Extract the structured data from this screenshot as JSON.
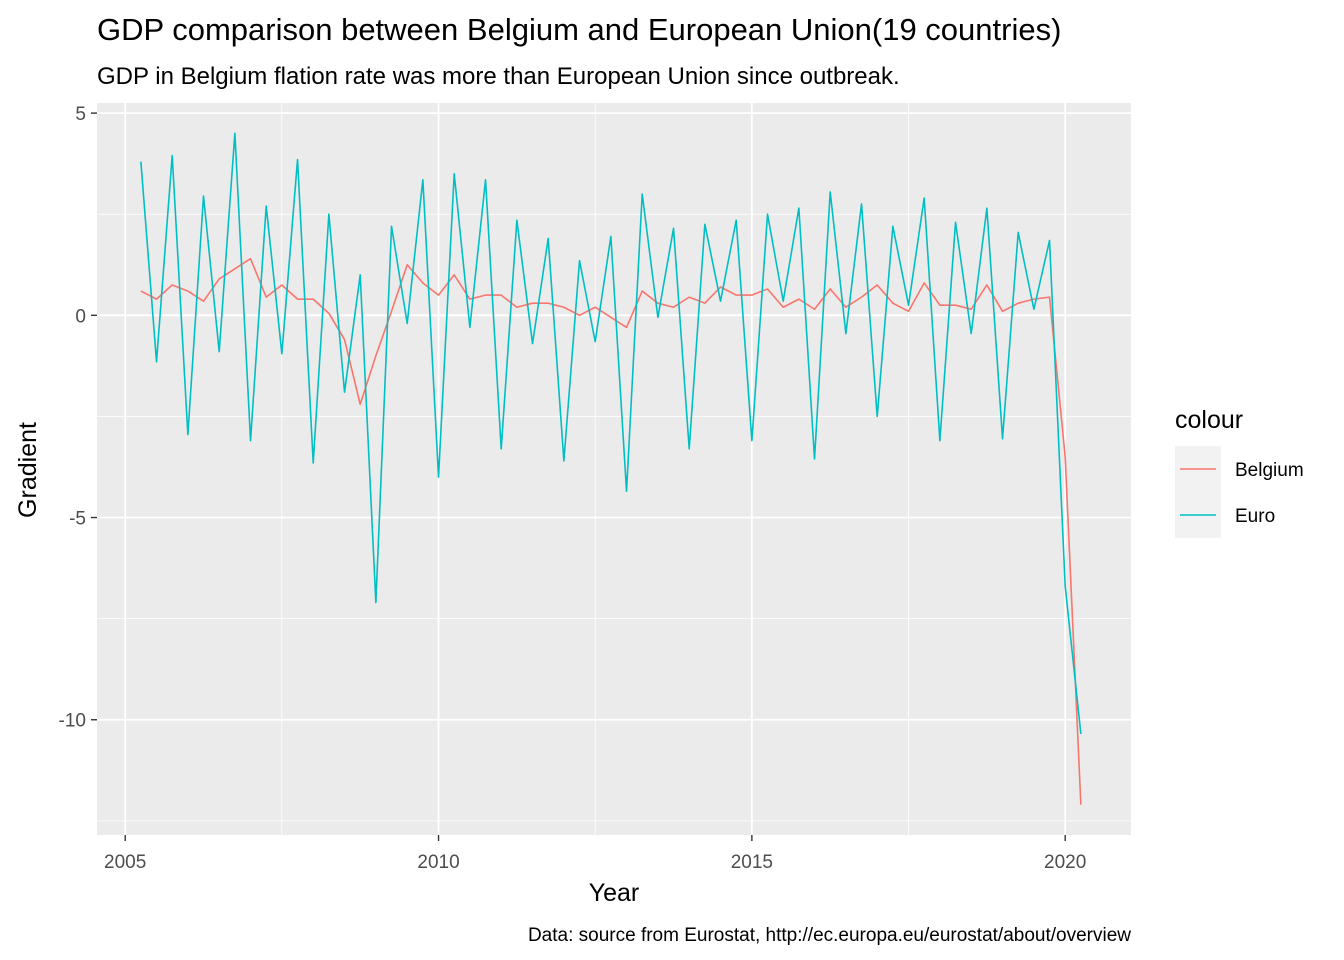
{
  "chart_data": {
    "type": "line",
    "title": "GDP comparison between Belgium and European Union(19 countries)",
    "subtitle": "GDP in Belgium flation rate was more than European Union since outbreak.",
    "xlabel": "Year",
    "ylabel": "Gradient",
    "caption": "Data: source from Eurostat,  http://ec.europa.eu/eurostat/about/overview",
    "xlim": [
      2004.55,
      2021.05
    ],
    "ylim": [
      -12.85,
      5.25
    ],
    "x_ticks": [
      2005,
      2010,
      2015,
      2020
    ],
    "x_tick_labels": [
      "2005",
      "2010",
      "2015",
      "2020"
    ],
    "y_ticks": [
      5,
      0,
      -5,
      -10
    ],
    "y_tick_labels": [
      "5",
      "0",
      "-5",
      "-10"
    ],
    "grid": true,
    "legend": {
      "title": "colour",
      "position": "right",
      "entries": [
        "Belgium",
        "Euro"
      ]
    },
    "colors": {
      "panel_bg": "#ebebeb",
      "grid": "#ffffff",
      "Belgium": "#f8766d",
      "Euro": "#00bfc4",
      "legend_key_bg": "#f2f2f2"
    },
    "x": [
      2005.25,
      2005.5,
      2005.75,
      2006.0,
      2006.25,
      2006.5,
      2006.75,
      2007.0,
      2007.25,
      2007.5,
      2007.75,
      2008.0,
      2008.25,
      2008.5,
      2008.75,
      2009.0,
      2009.25,
      2009.5,
      2009.75,
      2010.0,
      2010.25,
      2010.5,
      2010.75,
      2011.0,
      2011.25,
      2011.5,
      2011.75,
      2012.0,
      2012.25,
      2012.5,
      2012.75,
      2013.0,
      2013.25,
      2013.5,
      2013.75,
      2014.0,
      2014.25,
      2014.5,
      2014.75,
      2015.0,
      2015.25,
      2015.5,
      2015.75,
      2016.0,
      2016.25,
      2016.5,
      2016.75,
      2017.0,
      2017.25,
      2017.5,
      2017.75,
      2018.0,
      2018.25,
      2018.5,
      2018.75,
      2019.0,
      2019.25,
      2019.5,
      2019.75,
      2020.0,
      2020.25
    ],
    "series": [
      {
        "name": "Belgium",
        "values": [
          0.6,
          0.4,
          0.75,
          0.6,
          0.35,
          0.9,
          1.15,
          1.4,
          0.45,
          0.75,
          0.4,
          0.4,
          0.05,
          -0.6,
          -2.2,
          -1.0,
          0.1,
          1.25,
          0.8,
          0.5,
          1.0,
          0.4,
          0.5,
          0.5,
          0.2,
          0.3,
          0.3,
          0.2,
          0.0,
          0.2,
          -0.05,
          -0.3,
          0.6,
          0.3,
          0.2,
          0.45,
          0.3,
          0.7,
          0.5,
          0.5,
          0.65,
          0.2,
          0.4,
          0.15,
          0.65,
          0.2,
          0.45,
          0.75,
          0.3,
          0.1,
          0.8,
          0.25,
          0.25,
          0.15,
          0.75,
          0.1,
          0.3,
          0.4,
          0.45,
          -3.5,
          -12.1
        ]
      },
      {
        "name": "Euro",
        "values": [
          3.8,
          -1.15,
          3.95,
          -2.95,
          2.95,
          -0.9,
          4.5,
          -3.1,
          2.7,
          -0.95,
          3.85,
          -3.65,
          2.5,
          -1.9,
          1.0,
          -7.1,
          2.2,
          -0.2,
          3.35,
          -4.0,
          3.5,
          -0.3,
          3.35,
          -3.3,
          2.35,
          -0.7,
          1.9,
          -3.6,
          1.35,
          -0.65,
          1.95,
          -4.35,
          3.0,
          -0.05,
          2.15,
          -3.3,
          2.25,
          0.35,
          2.35,
          -3.1,
          2.5,
          0.35,
          2.65,
          -3.55,
          3.05,
          -0.45,
          2.75,
          -2.5,
          2.2,
          0.25,
          2.9,
          -3.1,
          2.3,
          -0.45,
          2.65,
          -3.05,
          2.05,
          0.15,
          1.85,
          -6.7,
          -10.35
        ]
      }
    ]
  }
}
